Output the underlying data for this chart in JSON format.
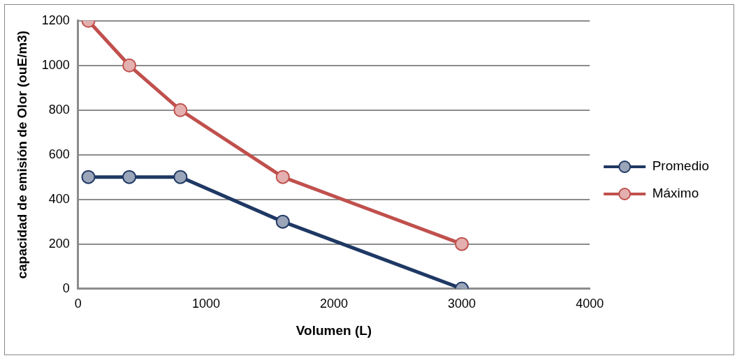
{
  "chart_data": {
    "type": "line",
    "xlabel": "Volumen (L)",
    "ylabel": "capacidad de emisión de Olor (ouE/m3)",
    "x": [
      80,
      400,
      800,
      1600,
      3000
    ],
    "series": [
      {
        "name": "Promedio",
        "color": "#1f3864",
        "values": [
          500,
          500,
          500,
          300,
          0
        ]
      },
      {
        "name": "Máximo",
        "color": "#c0504d",
        "values": [
          1200,
          1000,
          800,
          500,
          200
        ]
      }
    ],
    "xlim": [
      0,
      4000
    ],
    "xticks": [
      0,
      1000,
      2000,
      3000,
      4000
    ],
    "ylim": [
      0,
      1200
    ],
    "yticks": [
      0,
      200,
      400,
      600,
      800,
      1000,
      1200
    ],
    "grid": "y",
    "legend": "right",
    "marker": "circle",
    "line_style": "solid"
  }
}
